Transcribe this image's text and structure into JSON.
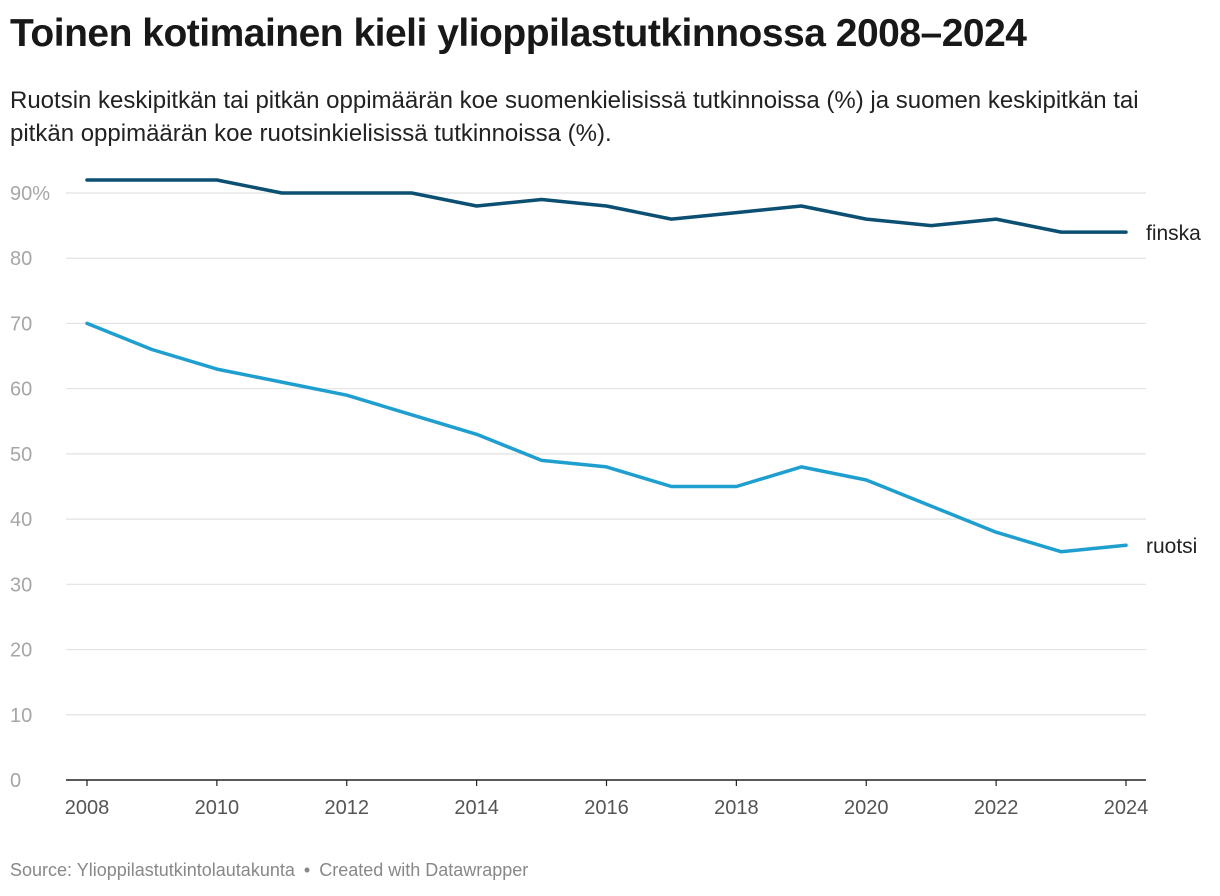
{
  "header": {
    "title": "Toinen kotimainen kieli ylioppilastutkinnossa 2008–2024",
    "subtitle": "Ruotsin keskipitkän tai pitkän oppimäärän koe suomenkielisissä tutkinnoissa (%) ja suomen keskipitkän tai pitkän oppimäärän koe ruotsinkielisissä tutkinnoissa (%)."
  },
  "footer": {
    "source": "Source: Ylioppilastutkintolautakunta",
    "separator": "•",
    "credit": "Created with Datawrapper"
  },
  "colors": {
    "finska": "#0b4f73",
    "ruotsi": "#1f9fcf",
    "grid": "#e2e2e2",
    "axis": "#222222",
    "tick_text": "#a6a6a6",
    "x_tick_text": "#555555"
  },
  "chart_data": {
    "type": "line",
    "title": "Toinen kotimainen kieli ylioppilastutkinnossa 2008–2024",
    "xlabel": "",
    "ylabel": "",
    "x": [
      2008,
      2009,
      2010,
      2011,
      2012,
      2013,
      2014,
      2015,
      2016,
      2017,
      2018,
      2019,
      2020,
      2021,
      2022,
      2023,
      2024
    ],
    "xlim": [
      2008,
      2024
    ],
    "ylim": [
      0,
      90
    ],
    "x_ticks": [
      2008,
      2010,
      2012,
      2014,
      2016,
      2018,
      2020,
      2022,
      2024
    ],
    "y_ticks": [
      0,
      10,
      20,
      30,
      40,
      50,
      60,
      70,
      80,
      90
    ],
    "y_tick_labels": [
      "0",
      "10",
      "20",
      "30",
      "40",
      "50",
      "60",
      "70",
      "80",
      "90%"
    ],
    "grid": true,
    "legend": "direct labels at line ends",
    "series": [
      {
        "name": "finska",
        "values": [
          92,
          92,
          92,
          90,
          90,
          90,
          88,
          89,
          88,
          86,
          87,
          88,
          86,
          85,
          86,
          84,
          84
        ]
      },
      {
        "name": "ruotsi",
        "values": [
          70,
          66,
          63,
          61,
          59,
          56,
          53,
          49,
          48,
          45,
          45,
          48,
          46,
          42,
          38,
          35,
          36
        ]
      }
    ]
  }
}
